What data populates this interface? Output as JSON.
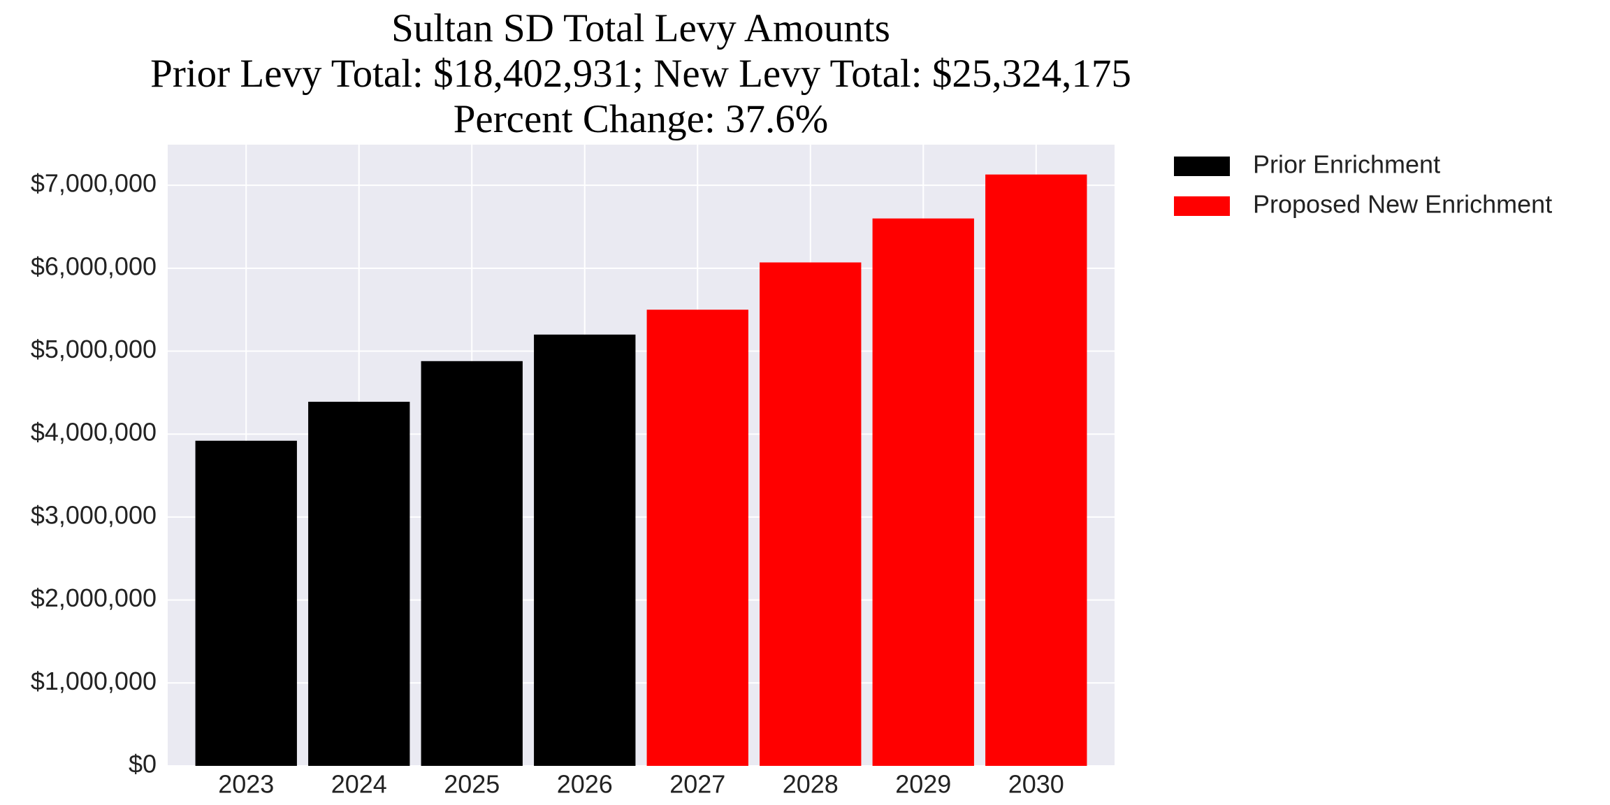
{
  "chart_data": {
    "type": "bar",
    "title": [
      "Sultan SD Total Levy Amounts",
      "Prior Levy Total:  $18,402,931; New Levy Total: $25,324,175",
      "Percent Change: 37.6%"
    ],
    "categories": [
      "2023",
      "2024",
      "2025",
      "2026",
      "2027",
      "2028",
      "2029",
      "2030"
    ],
    "series": [
      {
        "name": "Prior Enrichment",
        "color": "#000000",
        "values": [
          3920000,
          4390000,
          4880000,
          5200000,
          null,
          null,
          null,
          null
        ]
      },
      {
        "name": "Proposed New Enrichment",
        "color": "#ff0000",
        "values": [
          null,
          null,
          null,
          null,
          5500000,
          6070000,
          6600000,
          7130000
        ]
      }
    ],
    "ylim": [
      0,
      7490000
    ],
    "yticks": [
      {
        "value": 0,
        "label": "$0"
      },
      {
        "value": 1000000,
        "label": "$1,000,000"
      },
      {
        "value": 2000000,
        "label": "$2,000,000"
      },
      {
        "value": 3000000,
        "label": "$3,000,000"
      },
      {
        "value": 4000000,
        "label": "$4,000,000"
      },
      {
        "value": 5000000,
        "label": "$5,000,000"
      },
      {
        "value": 6000000,
        "label": "$6,000,000"
      },
      {
        "value": 7000000,
        "label": "$7,000,000"
      }
    ],
    "grid": true,
    "legend": "outside right"
  }
}
